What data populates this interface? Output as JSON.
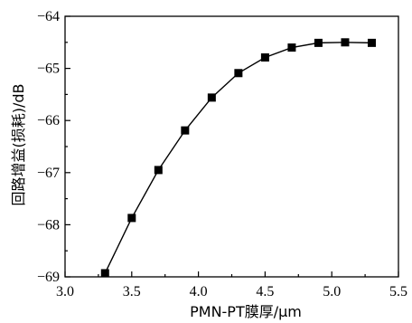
{
  "chart_data": {
    "type": "line",
    "title": "",
    "xlabel": "PMN-PT膜厚/μm",
    "ylabel": "回路增益(损耗)/dB",
    "xlim": [
      3.0,
      5.5
    ],
    "ylim": [
      -69,
      -64
    ],
    "x_ticks": [
      "3.0",
      "3.5",
      "4.0",
      "4.5",
      "5.0",
      "5.5"
    ],
    "y_ticks": [
      "−64",
      "−65",
      "−66",
      "−67",
      "−68",
      "−69"
    ],
    "grid": false,
    "legend": "none",
    "series": [
      {
        "marker": "square",
        "color": "#000000",
        "x": [
          3.3,
          3.5,
          3.7,
          3.9,
          4.1,
          4.3,
          4.5,
          4.7,
          4.9,
          5.1,
          5.3
        ],
        "y": [
          -68.93,
          -67.87,
          -66.95,
          -66.19,
          -65.56,
          -65.09,
          -64.79,
          -64.6,
          -64.51,
          -64.5,
          -64.51
        ]
      }
    ]
  }
}
